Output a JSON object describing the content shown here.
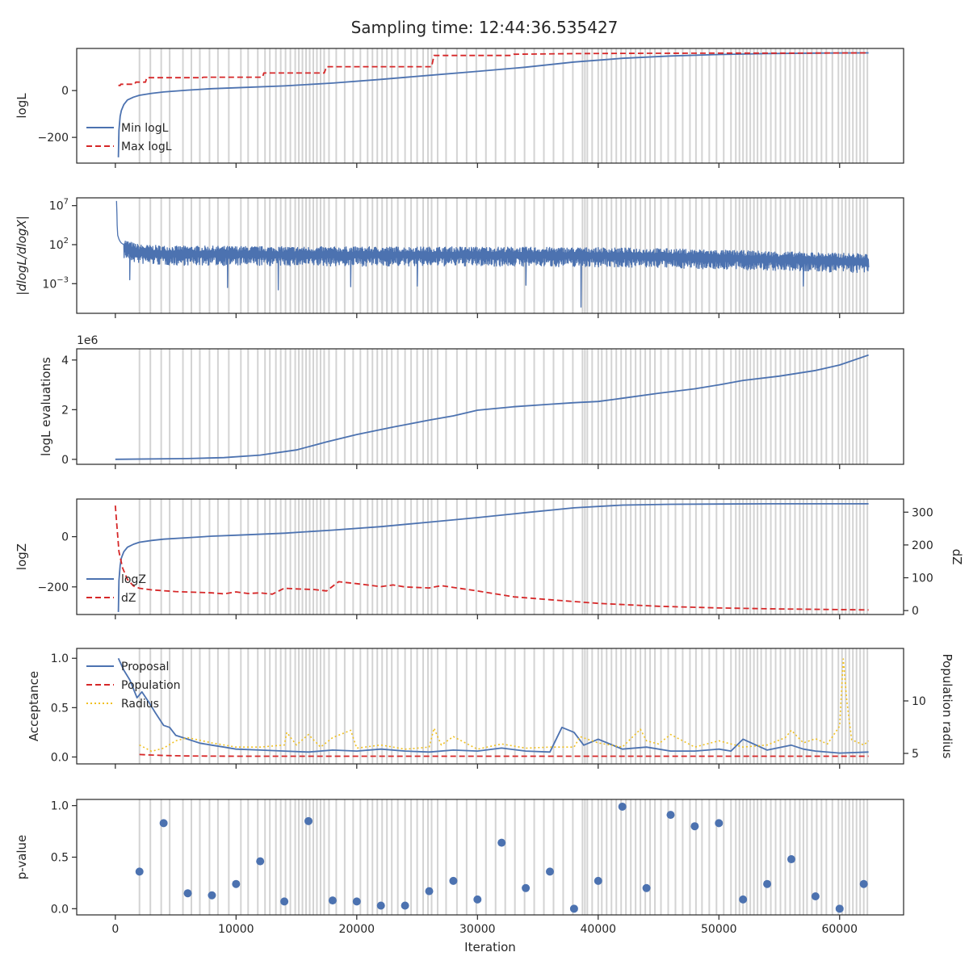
{
  "title": "Sampling time: 12:44:36.535427",
  "colors": {
    "blue": "#4c72b0",
    "red": "#d62728",
    "yellow": "#f0c020",
    "vline": "#d3d3d3",
    "axis": "#262626"
  },
  "chart_data": [
    {
      "id": "logl",
      "type": "line",
      "ylabel": "logL",
      "ylim": [
        -310,
        180
      ],
      "yticks": [
        0,
        -200
      ],
      "ytick_labels": [
        "0",
        "−200"
      ],
      "legend": "lower-left",
      "series": [
        {
          "name": "Min logL",
          "style": "solid",
          "color": "#4c72b0",
          "x": [
            250,
            300,
            400,
            500,
            700,
            1000,
            1500,
            2000,
            3000,
            4000,
            6000,
            8000,
            10000,
            14000,
            18000,
            22000,
            26000,
            30000,
            34000,
            38000,
            42000,
            46000,
            50000,
            54000,
            58000,
            62000,
            62400
          ],
          "y": [
            -285,
            -170,
            -110,
            -85,
            -60,
            -40,
            -28,
            -20,
            -12,
            -6,
            2,
            8,
            12,
            20,
            32,
            48,
            65,
            82,
            100,
            122,
            138,
            148,
            154,
            158,
            160,
            161,
            161
          ]
        },
        {
          "name": "Max logL",
          "style": "dashed",
          "color": "#d62728",
          "x": [
            250,
            400,
            450,
            1600,
            1700,
            2500,
            2600,
            7200,
            7300,
            12200,
            12300,
            17300,
            17500,
            26200,
            26400,
            32800,
            33000,
            38000,
            42000,
            50000,
            56000,
            62400
          ],
          "y": [
            22,
            22,
            27,
            27,
            36,
            36,
            55,
            55,
            57,
            57,
            75,
            75,
            102,
            102,
            150,
            150,
            155,
            158,
            159,
            160,
            160,
            161
          ]
        }
      ]
    },
    {
      "id": "dlogl",
      "type": "line",
      "ylabel": "|dlogL/dlogX|",
      "yscale": "log",
      "ylim_exp": [
        -6.8,
        8.0
      ],
      "yticks_exp": [
        7,
        2,
        -3
      ],
      "series": [
        {
          "name": "",
          "style": "solid",
          "color": "#4c72b0",
          "x": [
            100,
            130,
            150,
            200,
            300,
            400,
            500,
            700,
            1000,
            1500,
            2000,
            3000,
            5000,
            8000,
            12000,
            16000,
            20000,
            25000,
            30000,
            35000,
            40000,
            45000,
            50000,
            55000,
            60000,
            62400
          ],
          "y_exp": [
            7.6,
            6.0,
            4.5,
            3.2,
            2.7,
            2.4,
            2.2,
            2.0,
            1.8,
            1.5,
            1.3,
            1.2,
            1.1,
            1.1,
            1.05,
            1.0,
            1.0,
            1.0,
            1.0,
            0.95,
            0.9,
            0.8,
            0.6,
            0.4,
            0.2,
            0.1
          ],
          "band_exp": [
            0.8,
            0.9
          ],
          "spikes": [
            [
              38600,
              -6.0
            ],
            [
              13500,
              -3.8
            ],
            [
              9300,
              -3.5
            ],
            [
              19500,
              -3.4
            ],
            [
              34000,
              -3.2
            ],
            [
              25000,
              -3.3
            ],
            [
              57000,
              -3.3
            ],
            [
              1200,
              -2.5
            ]
          ]
        }
      ]
    },
    {
      "id": "evals",
      "type": "line",
      "ylabel": "logL evaluations",
      "offset_text": "1e6",
      "ylim": [
        -0.2,
        4.45
      ],
      "yticks": [
        0,
        2,
        4
      ],
      "ytick_labels": [
        "0",
        "2",
        "4"
      ],
      "series": [
        {
          "name": "",
          "style": "solid",
          "color": "#4c72b0",
          "x": [
            0,
            6000,
            9000,
            12000,
            15000,
            17500,
            20000,
            23000,
            26000,
            28000,
            30000,
            33000,
            36000,
            38000,
            40000,
            42000,
            45000,
            48000,
            50000,
            52000,
            55000,
            58000,
            60000,
            62400
          ],
          "y": [
            0,
            0.03,
            0.07,
            0.17,
            0.38,
            0.7,
            1.0,
            1.3,
            1.58,
            1.75,
            1.98,
            2.12,
            2.22,
            2.28,
            2.33,
            2.46,
            2.66,
            2.84,
            3.0,
            3.18,
            3.35,
            3.58,
            3.8,
            4.2
          ]
        }
      ]
    },
    {
      "id": "logz",
      "type": "line",
      "ylabel": "logZ",
      "ylabel_right": "dZ",
      "ylim": [
        -310,
        150
      ],
      "ylim_right": [
        -12,
        340
      ],
      "yticks": [
        0,
        -200
      ],
      "ytick_labels": [
        "0",
        "−200"
      ],
      "yticks_right": [
        0,
        100,
        200,
        300
      ],
      "ytick_labels_right": [
        "0",
        "100",
        "200",
        "300"
      ],
      "legend": "lower-left",
      "series": [
        {
          "name": "logZ",
          "style": "solid",
          "color": "#4c72b0",
          "axis": "left",
          "x": [
            250,
            300,
            400,
            500,
            700,
            1000,
            1500,
            2000,
            3000,
            4000,
            6000,
            8000,
            10000,
            14000,
            18000,
            22000,
            26000,
            30000,
            34000,
            38000,
            42000,
            46000,
            50000,
            54000,
            58000,
            62400
          ],
          "y": [
            -300,
            -175,
            -115,
            -85,
            -60,
            -42,
            -30,
            -22,
            -15,
            -10,
            -4,
            2,
            6,
            14,
            26,
            40,
            58,
            76,
            96,
            115,
            126,
            129,
            130,
            131,
            131,
            131
          ]
        },
        {
          "name": "dZ",
          "style": "dashed",
          "color": "#d62728",
          "axis": "right",
          "x": [
            0,
            300,
            600,
            1000,
            1500,
            2000,
            3000,
            5000,
            8000,
            9000,
            10000,
            11000,
            12000,
            13000,
            14000,
            15000,
            16500,
            17500,
            18500,
            20000,
            22000,
            23000,
            24000,
            26000,
            27000,
            30000,
            33000,
            36000,
            40000,
            45000,
            50000,
            55000,
            60000,
            62400
          ],
          "y": [
            320,
            180,
            130,
            95,
            75,
            68,
            63,
            58,
            54,
            51,
            57,
            52,
            54,
            50,
            68,
            66,
            64,
            60,
            88,
            82,
            73,
            78,
            72,
            69,
            76,
            60,
            42,
            33,
            22,
            13,
            8,
            5,
            3,
            2
          ]
        }
      ]
    },
    {
      "id": "accept",
      "type": "line",
      "ylabel": "Acceptance",
      "ylabel_right": "Population radius",
      "ylim": [
        -0.07,
        1.1
      ],
      "ylim_right": [
        4.0,
        15.0
      ],
      "yticks": [
        0.0,
        0.5,
        1.0
      ],
      "ytick_labels": [
        "0.0",
        "0.5",
        "1.0"
      ],
      "yticks_right": [
        5,
        10
      ],
      "ytick_labels_right": [
        "5",
        "10"
      ],
      "legend": "upper-left",
      "series": [
        {
          "name": "Proposal",
          "style": "solid",
          "color": "#4c72b0",
          "axis": "left",
          "x": [
            250,
            700,
            1200,
            1800,
            2200,
            2800,
            3300,
            4000,
            4500,
            5000,
            6000,
            7000,
            8000,
            9000,
            10000,
            12000,
            14000,
            16000,
            18000,
            20000,
            22000,
            24000,
            26000,
            28000,
            30000,
            32000,
            34000,
            36000,
            37000,
            38000,
            38800,
            40000,
            42000,
            44000,
            46000,
            48000,
            50000,
            51000,
            52000,
            54000,
            56000,
            57000,
            58000,
            60000,
            62400
          ],
          "y": [
            1.0,
            0.88,
            0.78,
            0.6,
            0.66,
            0.55,
            0.45,
            0.32,
            0.3,
            0.22,
            0.18,
            0.14,
            0.12,
            0.1,
            0.08,
            0.07,
            0.06,
            0.05,
            0.07,
            0.06,
            0.08,
            0.06,
            0.05,
            0.07,
            0.06,
            0.09,
            0.06,
            0.05,
            0.3,
            0.25,
            0.12,
            0.18,
            0.08,
            0.1,
            0.06,
            0.06,
            0.08,
            0.06,
            0.18,
            0.07,
            0.12,
            0.08,
            0.06,
            0.04,
            0.05
          ]
        },
        {
          "name": "Population",
          "style": "dashed",
          "color": "#d62728",
          "axis": "left",
          "x": [
            2000,
            4000,
            6000,
            10000,
            20000,
            30000,
            40000,
            50000,
            62400
          ],
          "y": [
            0.025,
            0.015,
            0.01,
            0.008,
            0.008,
            0.008,
            0.008,
            0.008,
            0.008
          ]
        },
        {
          "name": "Radius",
          "style": "dotted",
          "color": "#f0c020",
          "axis": "right",
          "x": [
            2000,
            3000,
            4000,
            5000,
            6000,
            8000,
            10000,
            12000,
            14000,
            14200,
            15000,
            16000,
            17000,
            18000,
            19500,
            20000,
            22000,
            24000,
            26000,
            26400,
            27000,
            28000,
            30000,
            32000,
            34000,
            36000,
            38000,
            38500,
            40000,
            42000,
            43500,
            44000,
            45000,
            46000,
            48000,
            50000,
            52000,
            54000,
            55500,
            56000,
            57000,
            58000,
            59000,
            60000,
            60300,
            60600,
            61000,
            62000,
            62400
          ],
          "y": [
            5.8,
            5.2,
            5.5,
            6.2,
            6.5,
            6.0,
            5.6,
            5.6,
            5.8,
            7.0,
            5.8,
            6.8,
            5.6,
            6.5,
            7.2,
            5.5,
            5.8,
            5.4,
            5.6,
            7.4,
            5.8,
            6.6,
            5.4,
            5.9,
            5.5,
            5.6,
            5.6,
            6.6,
            6.0,
            5.6,
            7.3,
            6.2,
            5.9,
            6.8,
            5.6,
            6.2,
            5.6,
            5.8,
            6.5,
            7.2,
            6.0,
            6.4,
            5.9,
            7.6,
            14.0,
            10.0,
            6.3,
            5.8,
            6.2
          ]
        }
      ]
    },
    {
      "id": "pvalue",
      "type": "scatter",
      "ylabel": "p-value",
      "xlabel": "Iteration",
      "ylim": [
        -0.06,
        1.06
      ],
      "yticks": [
        0.0,
        0.5,
        1.0
      ],
      "ytick_labels": [
        "0.0",
        "0.5",
        "1.0"
      ],
      "xticks": [
        0,
        10000,
        20000,
        30000,
        40000,
        50000,
        60000
      ],
      "xtick_labels": [
        "0",
        "10000",
        "20000",
        "30000",
        "40000",
        "50000",
        "60000"
      ],
      "series": [
        {
          "name": "",
          "color": "#4c72b0",
          "x": [
            2000,
            4000,
            6000,
            8000,
            10000,
            12000,
            14000,
            16000,
            18000,
            20000,
            22000,
            24000,
            26000,
            28000,
            30000,
            32000,
            34000,
            36000,
            38000,
            40000,
            42000,
            44000,
            46000,
            48000,
            50000,
            52000,
            54000,
            56000,
            58000,
            60000,
            62000
          ],
          "y": [
            0.36,
            0.83,
            0.15,
            0.13,
            0.24,
            0.46,
            0.07,
            0.85,
            0.08,
            0.07,
            0.03,
            0.03,
            0.17,
            0.27,
            0.09,
            0.64,
            0.2,
            0.36,
            0.0,
            0.27,
            0.99,
            0.2,
            0.91,
            0.8,
            0.83,
            0.09,
            0.24,
            0.48,
            0.12,
            0.0,
            0.24
          ]
        }
      ]
    }
  ],
  "shared_x": {
    "xlim": [
      -3200,
      65300
    ],
    "vlines": [
      2000,
      2900,
      3800,
      4500,
      5600,
      6300,
      7000,
      7800,
      8500,
      9400,
      10400,
      11000,
      11800,
      12400,
      12800,
      13300,
      13700,
      14100,
      14500,
      14900,
      15200,
      15500,
      15800,
      16100,
      16400,
      16700,
      17000,
      17300,
      17700,
      18300,
      19000,
      19700,
      20300,
      20900,
      21300,
      21700,
      22100,
      22500,
      22900,
      23400,
      24000,
      24500,
      25000,
      25500,
      25900,
      26200,
      26700,
      27400,
      28300,
      29100,
      29900,
      30700,
      31500,
      32300,
      33100,
      33900,
      34700,
      35500,
      36300,
      37100,
      37900,
      38700,
      38900,
      39100,
      39500,
      40000,
      40300,
      40700,
      41100,
      41500,
      41900,
      42300,
      42700,
      43100,
      43500,
      43900,
      44300,
      44700,
      45200,
      45800,
      46400,
      47000,
      47600,
      48100,
      48600,
      49200,
      49800,
      50400,
      51000,
      51400,
      51700,
      52000,
      52300,
      52600,
      52900,
      53200,
      53500,
      53900,
      54300,
      54700,
      55100,
      55500,
      55900,
      56300,
      56700,
      57000,
      57300,
      57700,
      58100,
      58500,
      58900,
      59400,
      59900,
      60200,
      60500,
      60800,
      61100,
      61400,
      61700,
      62000,
      62300
    ]
  }
}
